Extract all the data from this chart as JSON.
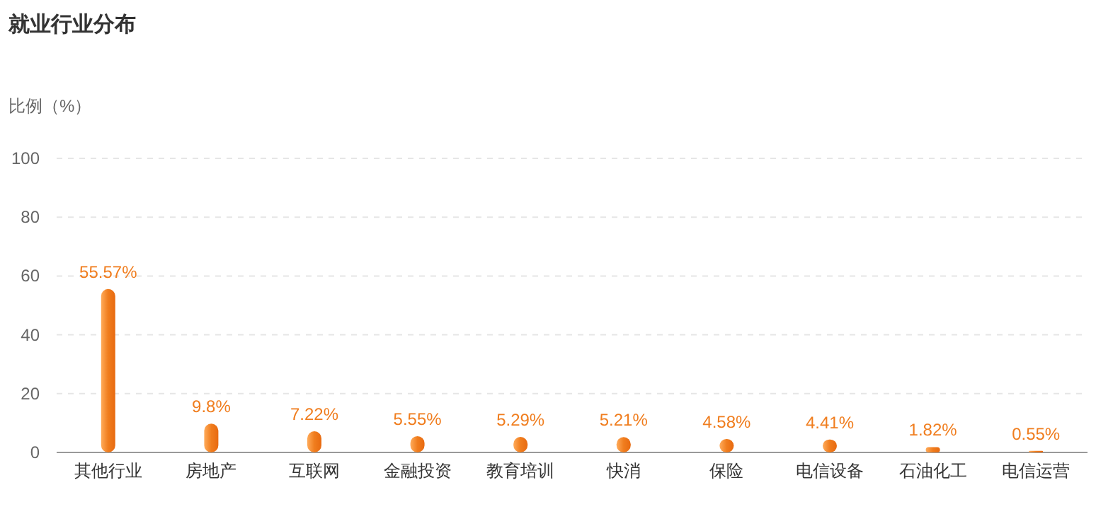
{
  "chart_data": {
    "type": "bar",
    "title": "就业行业分布",
    "ylabel": "比例（%）",
    "categories": [
      "其他行业",
      "房地产",
      "互联网",
      "金融投资",
      "教育培训",
      "快消",
      "保险",
      "电信设备",
      "石油化工",
      "电信运营"
    ],
    "values": [
      55.57,
      9.8,
      7.22,
      5.55,
      5.29,
      5.21,
      4.58,
      4.41,
      1.82,
      0.55
    ],
    "value_labels": [
      "55.57%",
      "9.8%",
      "7.22%",
      "5.55%",
      "5.29%",
      "5.21%",
      "4.58%",
      "4.41%",
      "1.82%",
      "0.55%"
    ],
    "color": "#f07d1e",
    "ylim": [
      0,
      100
    ],
    "yticks": [
      0,
      20,
      40,
      60,
      80,
      100
    ],
    "grid": "y"
  }
}
